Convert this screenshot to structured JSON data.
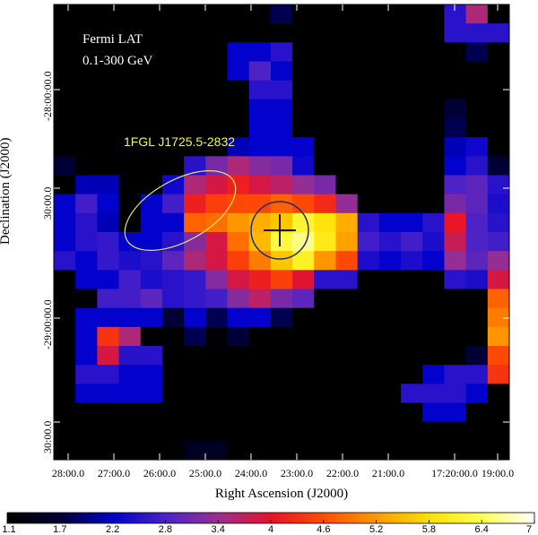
{
  "title": "Fermi LAT",
  "subtitle": "0.1-300 GeV",
  "source_label": "1FGL J1725.5-2832",
  "xlabel": "Right Ascension (J2000)",
  "ylabel": "Declination (J2000)",
  "x_ticks": [
    "28:00.0",
    "27:00.0",
    "26:00.0",
    "25:00.0",
    "24:00.0",
    "23:00.0",
    "22:00.0",
    "21:00.0",
    "17:20:00.0",
    "19:00.0"
  ],
  "y_ticks": [
    "-28:00:00.0",
    "30:00.0",
    "-29:00:00.0",
    "30:00.0"
  ],
  "colorbar": {
    "ticks": [
      "1.1",
      "1.7",
      "2.2",
      "2.8",
      "3.4",
      "4",
      "4.6",
      "5.2",
      "5.8",
      "6.4",
      "7"
    ],
    "min": 1.1,
    "max": 7,
    "colors": [
      "#000000",
      "#000033",
      "#0000cc",
      "#4a22c8",
      "#9a2f8e",
      "#e8102a",
      "#ff4d00",
      "#ff9a00",
      "#ffe000",
      "#ffff50",
      "#ffffff"
    ]
  },
  "colors": {
    "source_ellipse": "#e6e67a",
    "error_circle": "#1e2a78",
    "position_marker": "#000000"
  },
  "chart_data": {
    "type": "heatmap",
    "title": "Fermi LAT",
    "subtitle": "0.1-300 GeV",
    "xlabel": "Right Ascension (J2000)",
    "ylabel": "Declination (J2000)",
    "value_range": [
      1.1,
      7
    ],
    "grid": false,
    "values": [
      [
        1.1,
        1.1,
        1.1,
        1.1,
        1.1,
        1.1,
        1.1,
        1.1,
        1.1,
        1.1,
        1.8,
        1.1,
        1.1,
        1.1,
        1.1,
        1.1,
        1.1,
        1.1,
        2.6,
        3.6,
        1.1
      ],
      [
        1.1,
        1.1,
        1.1,
        1.1,
        1.1,
        1.1,
        1.1,
        1.1,
        1.1,
        1.1,
        1.1,
        1.1,
        1.1,
        1.1,
        1.1,
        1.1,
        1.1,
        1.1,
        2.6,
        2.6,
        2.6
      ],
      [
        1.1,
        1.1,
        1.1,
        1.1,
        1.1,
        1.1,
        1.1,
        1.1,
        2.3,
        2.3,
        2.6,
        1.1,
        1.1,
        1.1,
        1.1,
        1.1,
        1.1,
        1.1,
        1.1,
        1.8,
        1.1
      ],
      [
        1.1,
        1.1,
        1.1,
        1.1,
        1.1,
        1.1,
        1.1,
        1.1,
        2.3,
        2.9,
        2.3,
        1.1,
        1.1,
        1.1,
        1.1,
        1.1,
        1.1,
        1.1,
        1.1,
        1.1,
        1.1
      ],
      [
        1.1,
        1.1,
        1.1,
        1.1,
        1.1,
        1.1,
        1.1,
        1.1,
        1.1,
        2.6,
        2.6,
        1.1,
        1.1,
        1.1,
        1.1,
        1.1,
        1.1,
        1.1,
        1.1,
        1.1,
        1.1
      ],
      [
        1.1,
        1.1,
        1.1,
        1.1,
        1.1,
        1.1,
        1.1,
        1.1,
        1.1,
        2.3,
        2.3,
        1.1,
        1.1,
        1.1,
        1.1,
        1.1,
        1.1,
        1.1,
        1.7,
        1.1,
        1.1
      ],
      [
        1.1,
        1.1,
        1.1,
        1.1,
        1.1,
        1.1,
        1.1,
        1.1,
        1.1,
        2.3,
        2.3,
        1.1,
        1.1,
        1.1,
        1.1,
        1.1,
        1.1,
        1.1,
        1.8,
        1.1,
        1.1
      ],
      [
        1.1,
        1.1,
        1.1,
        1.1,
        1.1,
        1.1,
        1.1,
        1.1,
        2.2,
        2.3,
        2.3,
        2.3,
        1.1,
        1.1,
        1.1,
        1.1,
        1.1,
        1.1,
        2.2,
        2.4,
        1.1
      ],
      [
        1.7,
        1.1,
        1.1,
        1.1,
        1.1,
        1.1,
        2.6,
        3.2,
        3.6,
        3.3,
        3.2,
        2.4,
        1.1,
        1.1,
        1.1,
        1.1,
        1.1,
        1.1,
        2.3,
        2.6,
        1.7
      ],
      [
        1.1,
        2.2,
        2.2,
        1.1,
        1.1,
        2.4,
        3.6,
        3.9,
        4.2,
        3.9,
        3.7,
        3.4,
        3.2,
        1.1,
        1.1,
        1.1,
        1.1,
        1.1,
        2.9,
        3.0,
        2.6
      ],
      [
        2.3,
        2.8,
        2.3,
        1.1,
        2.3,
        2.8,
        4.2,
        4.5,
        4.6,
        4.6,
        4.8,
        4.6,
        4.3,
        3.4,
        1.1,
        1.1,
        1.1,
        1.1,
        3.2,
        3.0,
        2.5
      ],
      [
        2.3,
        2.6,
        2.2,
        1.1,
        2.3,
        2.3,
        4.8,
        4.9,
        5.2,
        5.4,
        5.6,
        6.2,
        5.9,
        5.4,
        2.6,
        2.3,
        2.3,
        2.6,
        4.1,
        2.9,
        2.6
      ],
      [
        2.3,
        2.6,
        2.7,
        2.3,
        2.3,
        2.6,
        3.3,
        3.9,
        4.9,
        5.5,
        6.3,
        6.6,
        6.0,
        5.3,
        2.8,
        2.6,
        2.8,
        2.5,
        3.8,
        2.9,
        2.8
      ],
      [
        2.6,
        2.3,
        2.7,
        2.5,
        2.6,
        3.0,
        3.6,
        3.9,
        4.5,
        5.0,
        5.6,
        6.1,
        5.2,
        4.6,
        2.5,
        2.3,
        2.5,
        2.3,
        3.4,
        3.0,
        3.4
      ],
      [
        1.1,
        2.3,
        2.3,
        2.8,
        2.5,
        2.6,
        2.7,
        3.3,
        3.9,
        4.2,
        4.5,
        4.0,
        2.6,
        2.6,
        1.1,
        1.1,
        1.1,
        1.1,
        2.6,
        2.5,
        3.9
      ],
      [
        1.1,
        1.1,
        2.8,
        2.8,
        3.0,
        2.6,
        2.7,
        2.8,
        3.3,
        3.7,
        3.2,
        3.0,
        1.1,
        1.1,
        1.1,
        1.1,
        1.1,
        1.1,
        1.1,
        1.1,
        4.8
      ],
      [
        1.1,
        2.3,
        2.3,
        2.3,
        2.3,
        1.7,
        2.3,
        1.8,
        2.3,
        2.3,
        1.8,
        1.1,
        1.1,
        1.1,
        1.1,
        1.1,
        1.1,
        1.1,
        1.1,
        1.1,
        5.0
      ],
      [
        1.1,
        2.3,
        4.4,
        3.6,
        1.1,
        1.1,
        1.8,
        1.1,
        1.7,
        1.1,
        1.1,
        1.1,
        1.1,
        1.1,
        1.1,
        1.1,
        1.1,
        1.1,
        1.1,
        1.1,
        5.2
      ],
      [
        1.1,
        2.3,
        3.9,
        2.6,
        2.6,
        1.1,
        1.1,
        1.1,
        1.1,
        1.1,
        1.1,
        1.1,
        1.1,
        1.1,
        1.1,
        1.1,
        1.1,
        1.1,
        1.1,
        1.7,
        4.6
      ],
      [
        1.1,
        2.6,
        2.6,
        2.3,
        2.3,
        1.1,
        1.1,
        1.1,
        1.1,
        1.1,
        1.1,
        1.1,
        1.1,
        1.1,
        1.1,
        1.1,
        1.1,
        2.3,
        2.6,
        2.6,
        4.4
      ],
      [
        1.1,
        2.3,
        2.3,
        2.3,
        2.3,
        1.1,
        1.1,
        1.1,
        1.1,
        1.1,
        1.1,
        1.1,
        1.1,
        1.1,
        1.1,
        1.1,
        2.6,
        2.6,
        2.6,
        2.3,
        1.1
      ],
      [
        1.1,
        1.1,
        1.1,
        1.1,
        1.1,
        1.1,
        1.1,
        1.1,
        1.1,
        1.1,
        1.1,
        1.1,
        1.1,
        1.1,
        1.1,
        1.1,
        1.1,
        2.3,
        2.3,
        1.1,
        1.1
      ],
      [
        1.1,
        1.1,
        1.1,
        1.1,
        1.1,
        1.1,
        1.1,
        1.1,
        1.1,
        1.1,
        1.1,
        1.1,
        1.1,
        1.1,
        1.1,
        1.1,
        1.1,
        1.1,
        1.1,
        1.1,
        1.1
      ],
      [
        1.1,
        1.1,
        1.1,
        1.1,
        1.1,
        1.1,
        1.5,
        1.5,
        1.1,
        1.1,
        1.1,
        1.1,
        1.1,
        1.1,
        1.1,
        1.1,
        1.1,
        1.1,
        1.1,
        1.1,
        1.1
      ]
    ]
  }
}
